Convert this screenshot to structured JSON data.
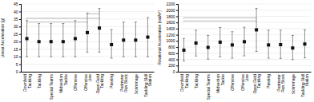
{
  "chart_data": [
    {
      "type": "scatter",
      "marker": "square",
      "color": "#111111",
      "grid": true,
      "y_label": "Linear Acceleration (g)",
      "categories": [
        "Downfield\nTackling",
        "Tackling",
        "Special Teams",
        "Midsection\nTackle",
        "Offensive",
        "Offensive\nLine",
        "Open Field\nTackling",
        "Passing",
        "Perimeter\nRun Block",
        "Scrimmage",
        "Tackling Skill\nStation"
      ],
      "values": [
        22,
        20,
        20,
        20,
        22,
        26,
        29,
        18,
        21,
        21,
        23
      ],
      "error_lower": [
        12,
        10,
        10,
        10,
        12,
        13,
        16,
        9,
        11,
        11,
        13
      ],
      "error_upper": [
        12,
        12,
        12,
        12,
        12,
        13,
        13,
        10,
        12,
        12,
        13
      ],
      "ylim": [
        0,
        45
      ],
      "yticks": [
        0,
        5,
        10,
        15,
        20,
        25,
        30,
        35,
        40,
        45
      ],
      "brackets": [
        {
          "x1": 5,
          "x2": 6,
          "y": 38.5
        },
        {
          "x1": 0,
          "x2": 6,
          "y": 35.5
        },
        {
          "x1": 0,
          "x2": 5,
          "y": 33.0
        }
      ]
    },
    {
      "type": "scatter",
      "marker": "square",
      "color": "#111111",
      "grid": true,
      "y_label": "Rotational Acceleration (rad/s²)",
      "categories": [
        "Downfield\nTackling",
        "Tackling",
        "Special Teams",
        "Midsection\nTackle",
        "Offensive",
        "Offensive\nLine",
        "Open Field\nTackling",
        "Passing",
        "Perimeter\nRun Block",
        "Scrimmage",
        "Tackling Skill\nStation"
      ],
      "values": [
        700,
        930,
        790,
        960,
        870,
        975,
        1360,
        870,
        880,
        770,
        900
      ],
      "error_lower": [
        350,
        420,
        380,
        480,
        430,
        460,
        700,
        430,
        450,
        380,
        450
      ],
      "error_upper": [
        380,
        420,
        390,
        480,
        430,
        470,
        700,
        480,
        470,
        410,
        460
      ],
      "ylim": [
        0,
        2200
      ],
      "yticks": [
        0,
        200,
        400,
        600,
        800,
        1000,
        1200,
        1400,
        1600,
        1800,
        2000,
        2200
      ],
      "brackets": [
        {
          "x1": 0,
          "x2": 6,
          "y": 1750
        },
        {
          "x1": 0,
          "x2": 6,
          "y": 1650
        }
      ]
    }
  ]
}
